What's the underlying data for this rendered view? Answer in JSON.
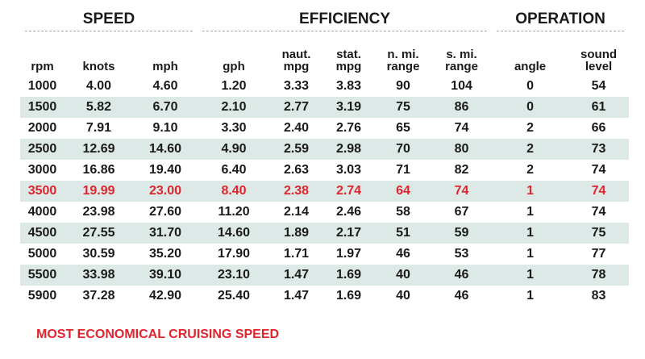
{
  "groups": [
    {
      "title": "SPEED",
      "span": 3
    },
    {
      "title": "EFFICIENCY",
      "span": 5
    },
    {
      "title": "OPERATION",
      "span": 2
    }
  ],
  "columns": [
    "rpm",
    "knots",
    "mph",
    "gph",
    "naut.\nmpg",
    "stat.\nmpg",
    "n. mi.\nrange",
    "s. mi.\nrange",
    "angle",
    "sound\nlevel"
  ],
  "rows": [
    [
      "1000",
      "4.00",
      "4.60",
      "1.20",
      "3.33",
      "3.83",
      "90",
      "104",
      "0",
      "54"
    ],
    [
      "1500",
      "5.82",
      "6.70",
      "2.10",
      "2.77",
      "3.19",
      "75",
      "86",
      "0",
      "61"
    ],
    [
      "2000",
      "7.91",
      "9.10",
      "3.30",
      "2.40",
      "2.76",
      "65",
      "74",
      "2",
      "66"
    ],
    [
      "2500",
      "12.69",
      "14.60",
      "4.90",
      "2.59",
      "2.98",
      "70",
      "80",
      "2",
      "73"
    ],
    [
      "3000",
      "16.86",
      "19.40",
      "6.40",
      "2.63",
      "3.03",
      "71",
      "82",
      "2",
      "74"
    ],
    [
      "3500",
      "19.99",
      "23.00",
      "8.40",
      "2.38",
      "2.74",
      "64",
      "74",
      "1",
      "74"
    ],
    [
      "4000",
      "23.98",
      "27.60",
      "11.20",
      "2.14",
      "2.46",
      "58",
      "67",
      "1",
      "74"
    ],
    [
      "4500",
      "27.55",
      "31.70",
      "14.60",
      "1.89",
      "2.17",
      "51",
      "59",
      "1",
      "75"
    ],
    [
      "5000",
      "30.59",
      "35.20",
      "17.90",
      "1.71",
      "1.97",
      "46",
      "53",
      "1",
      "77"
    ],
    [
      "5500",
      "33.98",
      "39.10",
      "23.10",
      "1.47",
      "1.69",
      "40",
      "46",
      "1",
      "78"
    ],
    [
      "5900",
      "37.28",
      "42.90",
      "25.40",
      "1.47",
      "1.69",
      "40",
      "46",
      "1",
      "83"
    ]
  ],
  "highlight_row": 5,
  "footnote": "MOST ECONOMICAL CRUISING SPEED"
}
